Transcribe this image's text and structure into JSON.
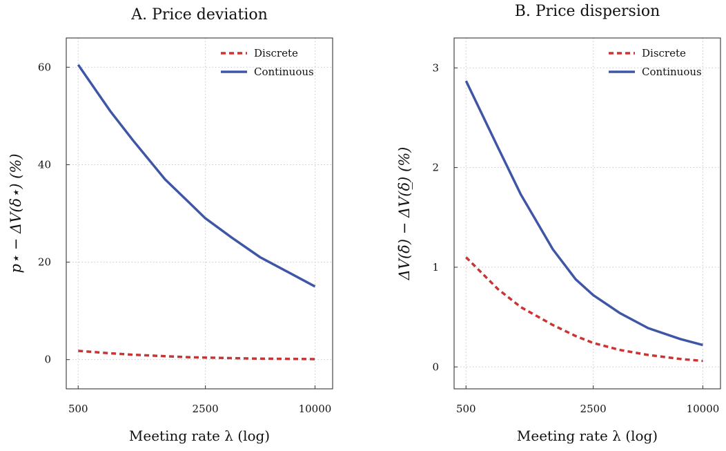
{
  "chart_data": [
    {
      "type": "line",
      "title": "A. Price deviation",
      "xlabel": "Meeting rate λ (log)",
      "ylabel": "p⋆ − ΔV(δ⋆) (%)",
      "xscale": "log",
      "xlim": [
        430,
        12500
      ],
      "ylim": [
        -6,
        66
      ],
      "xticks": [
        500,
        2500,
        10000
      ],
      "xtick_labels": [
        "500",
        "2500",
        "10000"
      ],
      "yticks": [
        0,
        20,
        40,
        60
      ],
      "ytick_labels": [
        "0",
        "20",
        "40",
        "60"
      ],
      "grid": true,
      "legend": "top-right",
      "series": [
        {
          "name": "Discrete",
          "color": "#cc3333",
          "dash": "dashed",
          "x": [
            500,
            750,
            1000,
            1500,
            2000,
            2500,
            3500,
            5000,
            7500,
            10000
          ],
          "y": [
            1.8,
            1.3,
            1.0,
            0.7,
            0.5,
            0.4,
            0.3,
            0.2,
            0.15,
            0.1
          ]
        },
        {
          "name": "Continuous",
          "color": "#3f56a6",
          "dash": "solid",
          "x": [
            500,
            750,
            1000,
            1500,
            2000,
            2500,
            3500,
            5000,
            7500,
            10000
          ],
          "y": [
            60.5,
            51,
            45,
            37,
            32.5,
            29,
            25,
            21,
            17.5,
            15
          ]
        }
      ]
    },
    {
      "type": "line",
      "title": "B. Price dispersion",
      "xlabel": "Meeting rate λ (log)",
      "ylabel": "ΔV(δ̄) − ΔV(δ̲) (%)",
      "xscale": "log",
      "xlim": [
        430,
        12500
      ],
      "ylim": [
        -0.22,
        3.3
      ],
      "xticks": [
        500,
        2500,
        10000
      ],
      "xtick_labels": [
        "500",
        "2500",
        "10000"
      ],
      "yticks": [
        0,
        1,
        2,
        3
      ],
      "ytick_labels": [
        "0",
        "1",
        "2",
        "3"
      ],
      "grid": true,
      "legend": "top-right",
      "series": [
        {
          "name": "Discrete",
          "color": "#cc3333",
          "dash": "dashed",
          "x": [
            500,
            750,
            1000,
            1500,
            2000,
            2500,
            3500,
            5000,
            7500,
            10000
          ],
          "y": [
            1.1,
            0.78,
            0.6,
            0.42,
            0.31,
            0.24,
            0.17,
            0.12,
            0.08,
            0.06
          ]
        },
        {
          "name": "Continuous",
          "color": "#3f56a6",
          "dash": "solid",
          "x": [
            500,
            750,
            1000,
            1500,
            2000,
            2500,
            3500,
            5000,
            7500,
            10000
          ],
          "y": [
            2.87,
            2.2,
            1.73,
            1.18,
            0.88,
            0.72,
            0.54,
            0.39,
            0.28,
            0.22
          ]
        }
      ]
    }
  ]
}
